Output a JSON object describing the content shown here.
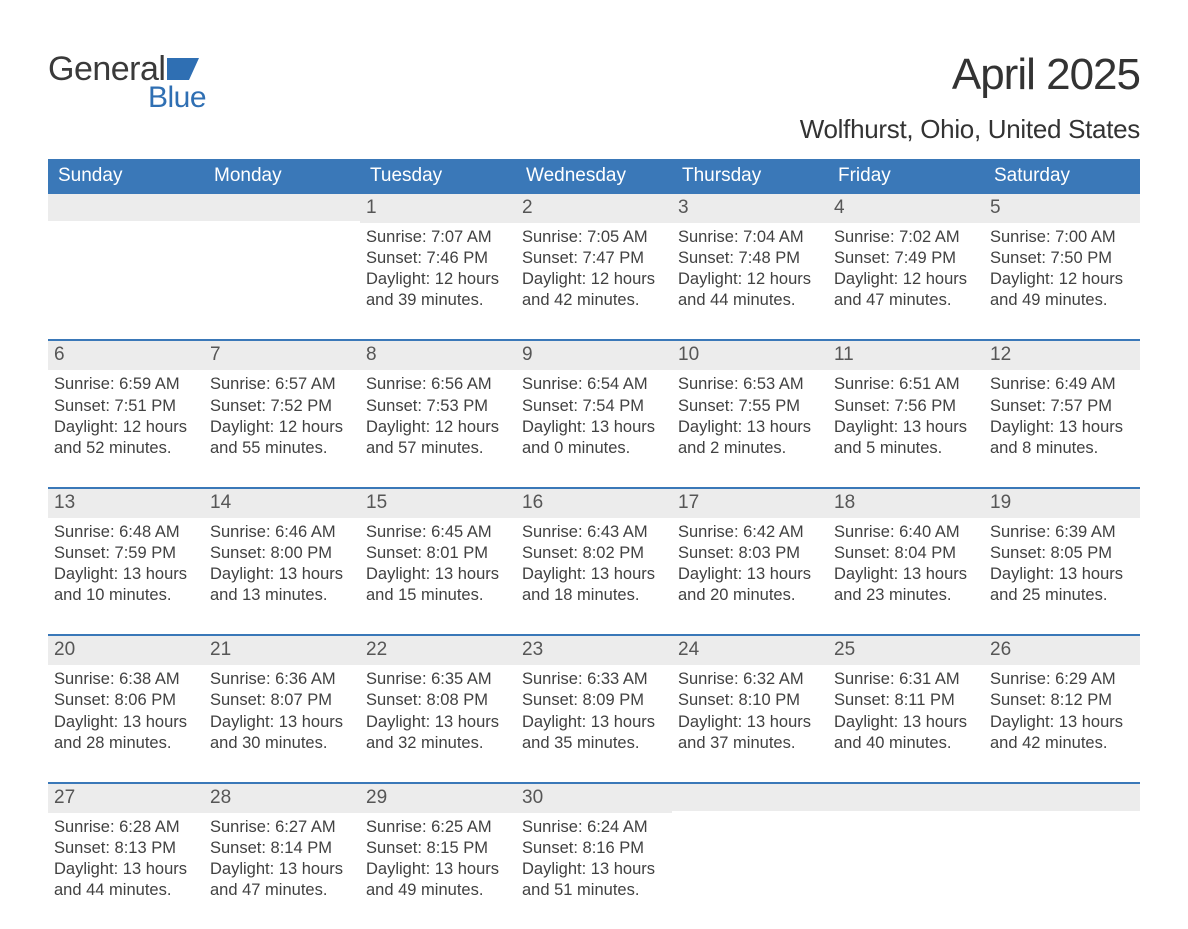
{
  "logo": {
    "word1": "General",
    "word2": "Blue",
    "shape_color": "#2f6fb3"
  },
  "title": "April 2025",
  "location": "Wolfhurst, Ohio, United States",
  "colors": {
    "header_bg": "#3a78b8",
    "header_text": "#ffffff",
    "daynum_bg": "#ececec",
    "daynum_text": "#565656",
    "body_text": "#414141",
    "week_divider": "#3a78b8",
    "page_bg": "#ffffff"
  },
  "fonts": {
    "title_size": 44,
    "location_size": 26,
    "dayhead_size": 19,
    "daynum_size": 19,
    "body_size": 16.5
  },
  "day_names": [
    "Sunday",
    "Monday",
    "Tuesday",
    "Wednesday",
    "Thursday",
    "Friday",
    "Saturday"
  ],
  "weeks": [
    [
      {
        "n": "",
        "sunrise": "",
        "sunset": "",
        "daylight1": "",
        "daylight2": ""
      },
      {
        "n": "",
        "sunrise": "",
        "sunset": "",
        "daylight1": "",
        "daylight2": ""
      },
      {
        "n": "1",
        "sunrise": "Sunrise: 7:07 AM",
        "sunset": "Sunset: 7:46 PM",
        "daylight1": "Daylight: 12 hours",
        "daylight2": "and 39 minutes."
      },
      {
        "n": "2",
        "sunrise": "Sunrise: 7:05 AM",
        "sunset": "Sunset: 7:47 PM",
        "daylight1": "Daylight: 12 hours",
        "daylight2": "and 42 minutes."
      },
      {
        "n": "3",
        "sunrise": "Sunrise: 7:04 AM",
        "sunset": "Sunset: 7:48 PM",
        "daylight1": "Daylight: 12 hours",
        "daylight2": "and 44 minutes."
      },
      {
        "n": "4",
        "sunrise": "Sunrise: 7:02 AM",
        "sunset": "Sunset: 7:49 PM",
        "daylight1": "Daylight: 12 hours",
        "daylight2": "and 47 minutes."
      },
      {
        "n": "5",
        "sunrise": "Sunrise: 7:00 AM",
        "sunset": "Sunset: 7:50 PM",
        "daylight1": "Daylight: 12 hours",
        "daylight2": "and 49 minutes."
      }
    ],
    [
      {
        "n": "6",
        "sunrise": "Sunrise: 6:59 AM",
        "sunset": "Sunset: 7:51 PM",
        "daylight1": "Daylight: 12 hours",
        "daylight2": "and 52 minutes."
      },
      {
        "n": "7",
        "sunrise": "Sunrise: 6:57 AM",
        "sunset": "Sunset: 7:52 PM",
        "daylight1": "Daylight: 12 hours",
        "daylight2": "and 55 minutes."
      },
      {
        "n": "8",
        "sunrise": "Sunrise: 6:56 AM",
        "sunset": "Sunset: 7:53 PM",
        "daylight1": "Daylight: 12 hours",
        "daylight2": "and 57 minutes."
      },
      {
        "n": "9",
        "sunrise": "Sunrise: 6:54 AM",
        "sunset": "Sunset: 7:54 PM",
        "daylight1": "Daylight: 13 hours",
        "daylight2": "and 0 minutes."
      },
      {
        "n": "10",
        "sunrise": "Sunrise: 6:53 AM",
        "sunset": "Sunset: 7:55 PM",
        "daylight1": "Daylight: 13 hours",
        "daylight2": "and 2 minutes."
      },
      {
        "n": "11",
        "sunrise": "Sunrise: 6:51 AM",
        "sunset": "Sunset: 7:56 PM",
        "daylight1": "Daylight: 13 hours",
        "daylight2": "and 5 minutes."
      },
      {
        "n": "12",
        "sunrise": "Sunrise: 6:49 AM",
        "sunset": "Sunset: 7:57 PM",
        "daylight1": "Daylight: 13 hours",
        "daylight2": "and 8 minutes."
      }
    ],
    [
      {
        "n": "13",
        "sunrise": "Sunrise: 6:48 AM",
        "sunset": "Sunset: 7:59 PM",
        "daylight1": "Daylight: 13 hours",
        "daylight2": "and 10 minutes."
      },
      {
        "n": "14",
        "sunrise": "Sunrise: 6:46 AM",
        "sunset": "Sunset: 8:00 PM",
        "daylight1": "Daylight: 13 hours",
        "daylight2": "and 13 minutes."
      },
      {
        "n": "15",
        "sunrise": "Sunrise: 6:45 AM",
        "sunset": "Sunset: 8:01 PM",
        "daylight1": "Daylight: 13 hours",
        "daylight2": "and 15 minutes."
      },
      {
        "n": "16",
        "sunrise": "Sunrise: 6:43 AM",
        "sunset": "Sunset: 8:02 PM",
        "daylight1": "Daylight: 13 hours",
        "daylight2": "and 18 minutes."
      },
      {
        "n": "17",
        "sunrise": "Sunrise: 6:42 AM",
        "sunset": "Sunset: 8:03 PM",
        "daylight1": "Daylight: 13 hours",
        "daylight2": "and 20 minutes."
      },
      {
        "n": "18",
        "sunrise": "Sunrise: 6:40 AM",
        "sunset": "Sunset: 8:04 PM",
        "daylight1": "Daylight: 13 hours",
        "daylight2": "and 23 minutes."
      },
      {
        "n": "19",
        "sunrise": "Sunrise: 6:39 AM",
        "sunset": "Sunset: 8:05 PM",
        "daylight1": "Daylight: 13 hours",
        "daylight2": "and 25 minutes."
      }
    ],
    [
      {
        "n": "20",
        "sunrise": "Sunrise: 6:38 AM",
        "sunset": "Sunset: 8:06 PM",
        "daylight1": "Daylight: 13 hours",
        "daylight2": "and 28 minutes."
      },
      {
        "n": "21",
        "sunrise": "Sunrise: 6:36 AM",
        "sunset": "Sunset: 8:07 PM",
        "daylight1": "Daylight: 13 hours",
        "daylight2": "and 30 minutes."
      },
      {
        "n": "22",
        "sunrise": "Sunrise: 6:35 AM",
        "sunset": "Sunset: 8:08 PM",
        "daylight1": "Daylight: 13 hours",
        "daylight2": "and 32 minutes."
      },
      {
        "n": "23",
        "sunrise": "Sunrise: 6:33 AM",
        "sunset": "Sunset: 8:09 PM",
        "daylight1": "Daylight: 13 hours",
        "daylight2": "and 35 minutes."
      },
      {
        "n": "24",
        "sunrise": "Sunrise: 6:32 AM",
        "sunset": "Sunset: 8:10 PM",
        "daylight1": "Daylight: 13 hours",
        "daylight2": "and 37 minutes."
      },
      {
        "n": "25",
        "sunrise": "Sunrise: 6:31 AM",
        "sunset": "Sunset: 8:11 PM",
        "daylight1": "Daylight: 13 hours",
        "daylight2": "and 40 minutes."
      },
      {
        "n": "26",
        "sunrise": "Sunrise: 6:29 AM",
        "sunset": "Sunset: 8:12 PM",
        "daylight1": "Daylight: 13 hours",
        "daylight2": "and 42 minutes."
      }
    ],
    [
      {
        "n": "27",
        "sunrise": "Sunrise: 6:28 AM",
        "sunset": "Sunset: 8:13 PM",
        "daylight1": "Daylight: 13 hours",
        "daylight2": "and 44 minutes."
      },
      {
        "n": "28",
        "sunrise": "Sunrise: 6:27 AM",
        "sunset": "Sunset: 8:14 PM",
        "daylight1": "Daylight: 13 hours",
        "daylight2": "and 47 minutes."
      },
      {
        "n": "29",
        "sunrise": "Sunrise: 6:25 AM",
        "sunset": "Sunset: 8:15 PM",
        "daylight1": "Daylight: 13 hours",
        "daylight2": "and 49 minutes."
      },
      {
        "n": "30",
        "sunrise": "Sunrise: 6:24 AM",
        "sunset": "Sunset: 8:16 PM",
        "daylight1": "Daylight: 13 hours",
        "daylight2": "and 51 minutes."
      },
      {
        "n": "",
        "sunrise": "",
        "sunset": "",
        "daylight1": "",
        "daylight2": ""
      },
      {
        "n": "",
        "sunrise": "",
        "sunset": "",
        "daylight1": "",
        "daylight2": ""
      },
      {
        "n": "",
        "sunrise": "",
        "sunset": "",
        "daylight1": "",
        "daylight2": ""
      }
    ]
  ]
}
